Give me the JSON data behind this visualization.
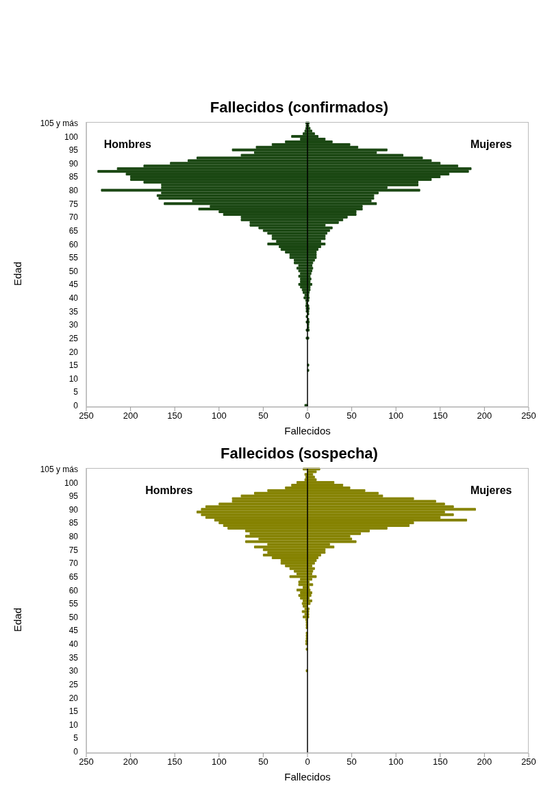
{
  "chart_data": [
    {
      "type": "bar",
      "title": "Fallecidos (confirmados)",
      "xlabel": "Fallecidos",
      "ylabel": "Edad",
      "orientation": "horizontal",
      "stacked": true,
      "categories": [
        "105 y más",
        null,
        null,
        null,
        null,
        "100",
        null,
        null,
        null,
        null,
        "95",
        null,
        null,
        null,
        null,
        "90",
        null,
        null,
        null,
        null,
        "85",
        null,
        null,
        null,
        null,
        "80",
        null,
        null,
        null,
        null,
        "75",
        null,
        null,
        null,
        null,
        "70",
        null,
        null,
        null,
        null,
        "65",
        null,
        null,
        null,
        null,
        "60",
        null,
        null,
        null,
        null,
        "55",
        null,
        null,
        null,
        null,
        "50",
        null,
        null,
        null,
        null,
        "45",
        null,
        null,
        null,
        null,
        "40",
        null,
        null,
        null,
        null,
        "35",
        null,
        null,
        null,
        null,
        "30",
        null,
        null,
        null,
        null,
        "25",
        null,
        null,
        null,
        null,
        "20",
        null,
        null,
        null,
        null,
        "15",
        null,
        null,
        null,
        null,
        "10",
        null,
        null,
        null,
        null,
        "5",
        null,
        null,
        null,
        null,
        "0"
      ],
      "series": [
        {
          "name": "Hombres",
          "color": "#1a4712",
          "values": [
            -2,
            -1,
            -2,
            -3,
            -5,
            -18,
            -8,
            -25,
            -40,
            -58,
            -85,
            -60,
            -75,
            -125,
            -135,
            -155,
            -185,
            -215,
            -237,
            -205,
            -200,
            -200,
            -185,
            -165,
            -165,
            -233,
            -165,
            -170,
            -168,
            -130,
            -162,
            -110,
            -123,
            -100,
            -95,
            -75,
            -75,
            -65,
            -65,
            -55,
            -50,
            -45,
            -40,
            -40,
            -35,
            -45,
            -32,
            -30,
            -25,
            -20,
            -20,
            -15,
            -15,
            -10,
            -12,
            -10,
            -8,
            -10,
            -8,
            -8,
            -10,
            -8,
            -6,
            -5,
            -3,
            -4,
            -2,
            -1,
            -2,
            -1,
            -1,
            0,
            -1,
            0,
            -1,
            0,
            0,
            -1,
            0,
            0,
            -1,
            0,
            0,
            0,
            0,
            0,
            0,
            0,
            0,
            0,
            0,
            0,
            0,
            0,
            0,
            0,
            0,
            0,
            0,
            0,
            0,
            0,
            0,
            0,
            0,
            -3
          ]
        },
        {
          "name": "Mujeres",
          "color": "#1a4712",
          "values": [
            2,
            1,
            3,
            5,
            8,
            12,
            20,
            28,
            48,
            57,
            90,
            78,
            108,
            130,
            140,
            150,
            170,
            185,
            182,
            160,
            150,
            140,
            125,
            125,
            90,
            127,
            80,
            75,
            75,
            72,
            78,
            62,
            62,
            55,
            55,
            45,
            40,
            35,
            20,
            28,
            25,
            22,
            20,
            20,
            15,
            20,
            15,
            12,
            10,
            10,
            10,
            8,
            6,
            5,
            6,
            5,
            4,
            3,
            4,
            3,
            5,
            3,
            3,
            2,
            1,
            2,
            1,
            0,
            1,
            2,
            1,
            1,
            0,
            1,
            2,
            1,
            1,
            2,
            0,
            0,
            1,
            0,
            0,
            0,
            0,
            0,
            0,
            0,
            0,
            0,
            1,
            0,
            1,
            0,
            0,
            0,
            0,
            0,
            0,
            0,
            0,
            0,
            0,
            0,
            0,
            0
          ]
        }
      ],
      "xlim": [
        -250,
        250
      ],
      "xticks": [
        {
          "value": -250,
          "label": "250"
        },
        {
          "value": -200,
          "label": "200"
        },
        {
          "value": -150,
          "label": "150"
        },
        {
          "value": -100,
          "label": "100"
        },
        {
          "value": -50,
          "label": "50"
        },
        0,
        50,
        100,
        150,
        200,
        250
      ],
      "ref_lines": [
        {
          "axis": "x",
          "value": 0,
          "color": "#000000"
        }
      ],
      "grid": false,
      "legend": false
    },
    {
      "type": "bar",
      "title": "Fallecidos (sospecha)",
      "xlabel": "Fallecidos",
      "ylabel": "Edad",
      "orientation": "horizontal",
      "stacked": true,
      "categories": [
        "105 y más",
        null,
        null,
        null,
        null,
        "100",
        null,
        null,
        null,
        null,
        "95",
        null,
        null,
        null,
        null,
        "90",
        null,
        null,
        null,
        null,
        "85",
        null,
        null,
        null,
        null,
        "80",
        null,
        null,
        null,
        null,
        "75",
        null,
        null,
        null,
        null,
        "70",
        null,
        null,
        null,
        null,
        "65",
        null,
        null,
        null,
        null,
        "60",
        null,
        null,
        null,
        null,
        "55",
        null,
        null,
        null,
        null,
        "50",
        null,
        null,
        null,
        null,
        "45",
        null,
        null,
        null,
        null,
        "40",
        null,
        null,
        null,
        null,
        "35",
        null,
        null,
        null,
        null,
        "30",
        null,
        null,
        null,
        null,
        "25",
        null,
        null,
        null,
        null,
        "20",
        null,
        null,
        null,
        null,
        "15",
        null,
        null,
        null,
        null,
        "10",
        null,
        null,
        null,
        null,
        "5",
        null,
        null,
        null,
        null,
        "0"
      ],
      "series": [
        {
          "name": "Hombres",
          "color": "#858200",
          "values": [
            -5,
            0,
            -3,
            -2,
            -3,
            -12,
            -18,
            -25,
            -45,
            -60,
            -75,
            -85,
            -85,
            -100,
            -115,
            -120,
            -125,
            -120,
            -115,
            -105,
            -100,
            -95,
            -90,
            -70,
            -65,
            -70,
            -55,
            -70,
            -45,
            -60,
            -50,
            -45,
            -50,
            -40,
            -30,
            -30,
            -25,
            -20,
            -15,
            -12,
            -20,
            -8,
            -10,
            -10,
            -5,
            -12,
            -8,
            -10,
            -8,
            -5,
            -6,
            -5,
            -3,
            -6,
            -3,
            -5,
            -2,
            -1,
            -1,
            -1,
            0,
            -1,
            -1,
            -1,
            -2,
            -2,
            0,
            -1,
            0,
            0,
            0,
            0,
            0,
            0,
            0,
            -1,
            0,
            0,
            0,
            0,
            0,
            0,
            0,
            0,
            0,
            0,
            0,
            0,
            0,
            0,
            0,
            0,
            0,
            0,
            0,
            0,
            0,
            0,
            0,
            0,
            0,
            0,
            0,
            0,
            0,
            0
          ]
        },
        {
          "name": "Mujeres",
          "color": "#858200",
          "values": [
            14,
            10,
            6,
            8,
            10,
            30,
            40,
            48,
            65,
            80,
            85,
            120,
            145,
            155,
            165,
            190,
            155,
            165,
            150,
            180,
            120,
            115,
            90,
            70,
            60,
            48,
            50,
            55,
            25,
            30,
            20,
            20,
            15,
            12,
            10,
            8,
            5,
            8,
            6,
            5,
            10,
            5,
            2,
            6,
            2,
            3,
            5,
            4,
            2,
            5,
            3,
            0,
            2,
            1,
            1,
            1,
            0,
            0,
            0,
            0,
            0,
            0,
            0,
            0,
            0,
            0,
            0,
            0,
            0,
            0,
            0,
            0,
            0,
            0,
            0,
            0,
            0,
            0,
            0,
            0,
            0,
            0,
            0,
            0,
            0,
            0,
            0,
            0,
            0,
            0,
            0,
            0,
            0,
            0,
            0,
            0,
            0,
            0,
            0,
            0,
            0,
            0,
            0,
            0,
            0,
            0
          ]
        }
      ],
      "xlim": [
        -250,
        250
      ],
      "xticks": [
        {
          "value": -250,
          "label": "250"
        },
        {
          "value": -200,
          "label": "200"
        },
        {
          "value": -150,
          "label": "150"
        },
        {
          "value": -100,
          "label": "100"
        },
        {
          "value": -50,
          "label": "50"
        },
        0,
        50,
        100,
        150,
        200,
        250
      ],
      "ref_lines": [
        {
          "axis": "x",
          "value": 0,
          "color": "#000000"
        }
      ],
      "grid": false,
      "legend": false
    }
  ]
}
